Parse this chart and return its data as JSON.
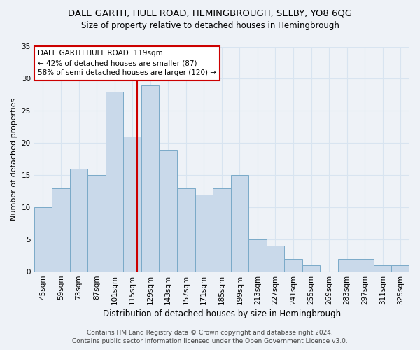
{
  "title1": "DALE GARTH, HULL ROAD, HEMINGBROUGH, SELBY, YO8 6QG",
  "title2": "Size of property relative to detached houses in Hemingbrough",
  "xlabel": "Distribution of detached houses by size in Hemingbrough",
  "ylabel": "Number of detached properties",
  "categories": [
    "45sqm",
    "59sqm",
    "73sqm",
    "87sqm",
    "101sqm",
    "115sqm",
    "129sqm",
    "143sqm",
    "157sqm",
    "171sqm",
    "185sqm",
    "199sqm",
    "213sqm",
    "227sqm",
    "241sqm",
    "255sqm",
    "269sqm",
    "283sqm",
    "297sqm",
    "311sqm",
    "325sqm"
  ],
  "values": [
    10,
    13,
    16,
    15,
    28,
    21,
    29,
    19,
    13,
    12,
    13,
    15,
    5,
    4,
    2,
    1,
    0,
    2,
    2,
    1,
    1
  ],
  "bar_color": "#c9d9ea",
  "bar_edge_color": "#7aaac8",
  "marker_line_color": "#cc0000",
  "annotation_line1": "DALE GARTH HULL ROAD: 119sqm",
  "annotation_line2": "← 42% of detached houses are smaller (87)",
  "annotation_line3": "58% of semi-detached houses are larger (120) →",
  "annotation_box_color": "#ffffff",
  "annotation_box_edge": "#cc0000",
  "footer1": "Contains HM Land Registry data © Crown copyright and database right 2024.",
  "footer2": "Contains public sector information licensed under the Open Government Licence v3.0.",
  "ylim": [
    0,
    35
  ],
  "yticks": [
    0,
    5,
    10,
    15,
    20,
    25,
    30,
    35
  ],
  "background_color": "#eef2f7",
  "grid_color": "#d8e4f0",
  "title1_fontsize": 9.5,
  "title2_fontsize": 8.5,
  "xlabel_fontsize": 8.5,
  "ylabel_fontsize": 8.0,
  "tick_fontsize": 7.5,
  "footer_fontsize": 6.5,
  "ann_fontsize": 7.5
}
